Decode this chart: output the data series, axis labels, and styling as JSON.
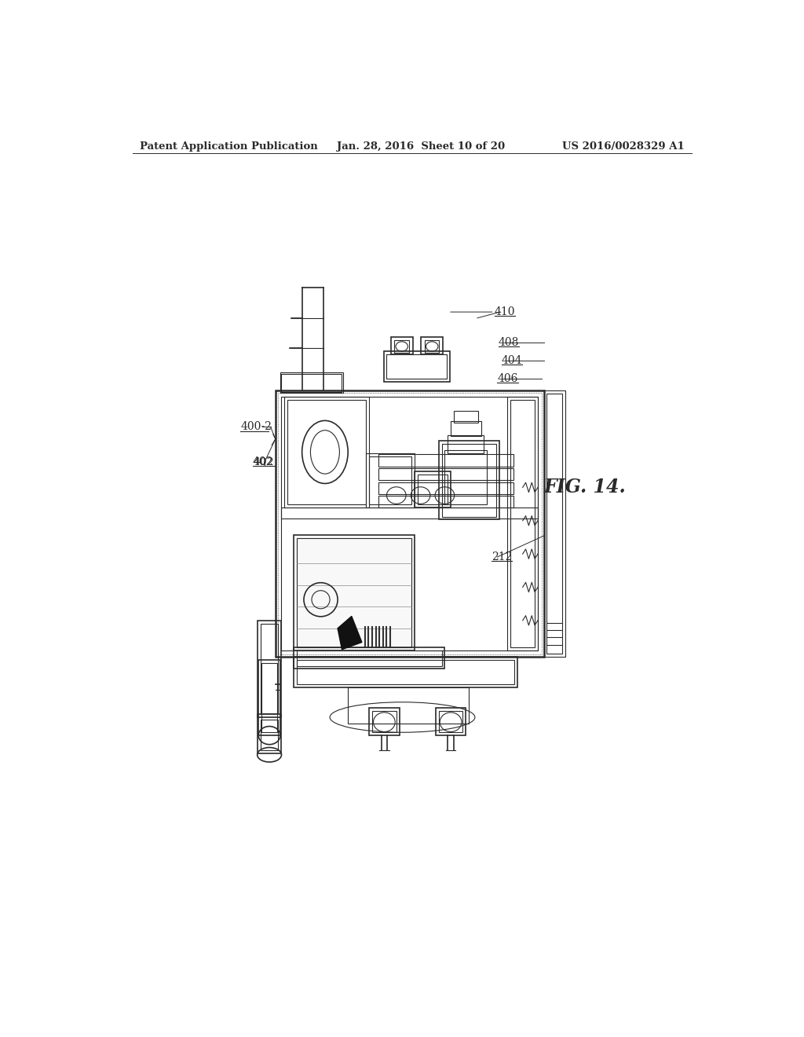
{
  "bg_color": "#ffffff",
  "line_color": "#2a2a2a",
  "header_left": "Patent Application Publication",
  "header_mid": "Jan. 28, 2016  Sheet 10 of 20",
  "header_right": "US 2016/0028329 A1",
  "fig_label": "FIG. 14."
}
